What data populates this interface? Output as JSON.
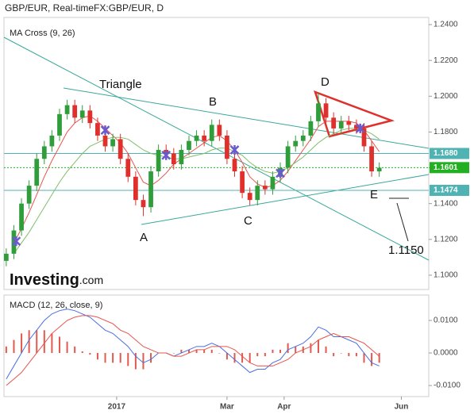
{
  "chart_data": [
    {
      "type": "candlestick",
      "title": "GBP/EUR, Real-timeFX:GBP/EUR, D",
      "subtitle": "MA Cross (9, 26)",
      "logo": {
        "brand": "Investing",
        "suffix": ".com"
      },
      "xlim": [
        -0.3,
        55.5
      ],
      "xticks": [
        {
          "value": 14.5,
          "label": "2017"
        },
        {
          "value": 29,
          "label": "Mar"
        },
        {
          "value": 36.5,
          "label": "Apr"
        },
        {
          "value": 51.9,
          "label": "Jun"
        }
      ],
      "ylim": [
        1.092,
        1.244
      ],
      "yticks": [
        {
          "value": 1.1,
          "label": "1.1000"
        },
        {
          "value": 1.12,
          "label": "1.1200"
        },
        {
          "value": 1.14,
          "label": "1.1400"
        },
        {
          "value": 1.16,
          "label": "1.1600"
        },
        {
          "value": 1.18,
          "label": "1.1800"
        },
        {
          "value": 1.2,
          "label": "1.2000"
        },
        {
          "value": 1.22,
          "label": "1.2200"
        },
        {
          "value": 1.24,
          "label": "1.2400"
        }
      ],
      "up_color": "#2f9e3a",
      "down_color": "#e0302c",
      "open": [
        1.108,
        1.112,
        1.125,
        1.14,
        1.15,
        1.165,
        1.172,
        1.178,
        1.19,
        1.195,
        1.188,
        1.192,
        1.185,
        1.178,
        1.172,
        1.176,
        1.165,
        1.155,
        1.142,
        1.138,
        1.158,
        1.17,
        1.168,
        1.162,
        1.17,
        1.175,
        1.178,
        1.175,
        1.184,
        1.178,
        1.165,
        1.158,
        1.146,
        1.142,
        1.15,
        1.148,
        1.155,
        1.16,
        1.172,
        1.175,
        1.178,
        1.186,
        1.196,
        1.188,
        1.182,
        1.186,
        1.184,
        1.182,
        1.172,
        1.158
      ],
      "high": [
        1.115,
        1.128,
        1.143,
        1.153,
        1.168,
        1.175,
        1.181,
        1.193,
        1.198,
        1.198,
        1.195,
        1.195,
        1.188,
        1.181,
        1.179,
        1.179,
        1.168,
        1.158,
        1.145,
        1.161,
        1.173,
        1.173,
        1.171,
        1.173,
        1.178,
        1.181,
        1.181,
        1.187,
        1.187,
        1.181,
        1.168,
        1.161,
        1.149,
        1.153,
        1.153,
        1.158,
        1.163,
        1.175,
        1.178,
        1.181,
        1.189,
        1.202,
        1.199,
        1.191,
        1.189,
        1.189,
        1.187,
        1.185,
        1.175,
        1.163
      ],
      "low": [
        1.105,
        1.109,
        1.122,
        1.137,
        1.147,
        1.162,
        1.169,
        1.175,
        1.187,
        1.185,
        1.185,
        1.182,
        1.175,
        1.169,
        1.169,
        1.162,
        1.152,
        1.139,
        1.133,
        1.135,
        1.155,
        1.165,
        1.159,
        1.159,
        1.167,
        1.172,
        1.172,
        1.172,
        1.175,
        1.162,
        1.155,
        1.143,
        1.139,
        1.139,
        1.145,
        1.145,
        1.152,
        1.157,
        1.169,
        1.172,
        1.175,
        1.183,
        1.185,
        1.179,
        1.179,
        1.181,
        1.179,
        1.169,
        1.155,
        1.155
      ],
      "close": [
        1.112,
        1.125,
        1.14,
        1.15,
        1.165,
        1.172,
        1.178,
        1.19,
        1.195,
        1.188,
        1.192,
        1.185,
        1.178,
        1.172,
        1.176,
        1.165,
        1.155,
        1.142,
        1.138,
        1.158,
        1.17,
        1.168,
        1.162,
        1.17,
        1.175,
        1.178,
        1.175,
        1.184,
        1.178,
        1.165,
        1.158,
        1.146,
        1.142,
        1.15,
        1.148,
        1.155,
        1.16,
        1.172,
        1.175,
        1.178,
        1.186,
        1.196,
        1.188,
        1.182,
        1.186,
        1.184,
        1.182,
        1.172,
        1.158,
        1.16
      ],
      "series": [
        {
          "color": "#e8544e",
          "values": [
            null,
            1.118,
            1.126,
            1.135,
            1.145,
            1.155,
            1.164,
            1.172,
            1.18,
            1.185,
            1.188,
            1.189,
            1.186,
            1.182,
            1.178,
            1.174,
            1.168,
            1.16,
            1.152,
            1.15,
            1.153,
            1.157,
            1.162,
            1.165,
            1.168,
            1.171,
            1.174,
            1.177,
            1.178,
            1.175,
            1.17,
            1.163,
            1.155,
            1.151,
            1.149,
            1.15,
            1.153,
            1.158,
            1.164,
            1.17,
            1.176,
            1.183,
            1.186,
            1.186,
            1.186,
            1.186,
            1.185,
            1.181,
            1.175,
            1.169
          ]
        },
        {
          "color": "#7fbf6a",
          "values": [
            null,
            1.112,
            1.118,
            1.124,
            1.131,
            1.138,
            1.145,
            1.152,
            1.158,
            1.163,
            1.168,
            1.172,
            1.174,
            1.176,
            1.177,
            1.177,
            1.176,
            1.173,
            1.17,
            1.168,
            1.167,
            1.166,
            1.165,
            1.165,
            1.166,
            1.167,
            1.168,
            1.17,
            1.171,
            1.171,
            1.169,
            1.167,
            1.163,
            1.16,
            1.158,
            1.157,
            1.158,
            1.16,
            1.163,
            1.166,
            1.17,
            1.174,
            1.177,
            1.179,
            1.181,
            1.182,
            1.182,
            1.181,
            1.179,
            1.176
          ]
        }
      ],
      "cross_markers": {
        "color": "#6a5acd",
        "x": [
          1.3,
          13,
          21,
          30,
          36,
          46.5
        ],
        "values": [
          1.119,
          1.181,
          1.167,
          1.17,
          1.157,
          1.182
        ]
      },
      "levels": [
        {
          "value": 1.168,
          "label": "1.1680",
          "color": "#4fb3b3"
        },
        {
          "value": 1.1601,
          "label": "1.1601",
          "color": "#22b022"
        },
        {
          "value": 1.1474,
          "label": "1.1474",
          "color": "#4fb3b3"
        }
      ],
      "annotations": [
        "Triangle",
        "B",
        "D",
        "A",
        "C",
        "E",
        "1.1150"
      ]
    },
    {
      "type": "macd",
      "title": "MACD (12, 26, close, 9)",
      "ylim": [
        -0.0134,
        0.0178
      ],
      "yticks": [
        {
          "value": 0.01,
          "label": "0.0100"
        },
        {
          "value": 0,
          "label": "0.0000"
        },
        {
          "value": -0.01,
          "label": "-0.0100"
        }
      ],
      "histogram": {
        "color": "#e05a50",
        "values": [
          0.002,
          0.004,
          0.006,
          0.007,
          0.007,
          0.007,
          0.006,
          0.005,
          0.0035,
          0.002,
          0.0005,
          -0.0005,
          -0.002,
          -0.003,
          -0.003,
          -0.003,
          -0.004,
          -0.005,
          -0.005,
          -0.003,
          0,
          0,
          0,
          0.001,
          0.001,
          0.001,
          0.001,
          0.001,
          0,
          -0.002,
          -0.003,
          -0.003,
          -0.003,
          -0.001,
          -0.001,
          0.001,
          0.001,
          0.003,
          0.002,
          0.002,
          0.003,
          0.004,
          0.002,
          -0.001,
          0,
          -0.001,
          -0.001,
          -0.003,
          -0.004,
          -0.003
        ]
      },
      "series": [
        {
          "color": "#4a6fe0",
          "values": [
            -0.008,
            -0.004,
            0.0,
            0.004,
            0.007,
            0.01,
            0.012,
            0.013,
            0.0135,
            0.013,
            0.012,
            0.011,
            0.009,
            0.007,
            0.006,
            0.004,
            0.002,
            -0.001,
            -0.003,
            -0.002,
            0.0,
            0.0,
            -0.001,
            0.0,
            0.001,
            0.002,
            0.002,
            0.003,
            0.002,
            0.0,
            -0.002,
            -0.004,
            -0.006,
            -0.005,
            -0.005,
            -0.003,
            -0.002,
            0.001,
            0.002,
            0.003,
            0.005,
            0.008,
            0.007,
            0.005,
            0.005,
            0.004,
            0.003,
            0.0,
            -0.003,
            -0.004
          ]
        },
        {
          "color": "#e8544e",
          "values": [
            -0.01,
            -0.008,
            -0.006,
            -0.003,
            0.0,
            0.003,
            0.006,
            0.008,
            0.01,
            0.011,
            0.0115,
            0.0115,
            0.011,
            0.01,
            0.009,
            0.007,
            0.006,
            0.004,
            0.002,
            0.001,
            0.0,
            0.0,
            -0.001,
            -0.001,
            0.0,
            0.001,
            0.001,
            0.002,
            0.002,
            0.002,
            0.001,
            -0.001,
            -0.003,
            -0.004,
            -0.004,
            -0.004,
            -0.003,
            -0.002,
            0.0,
            0.001,
            0.002,
            0.004,
            0.005,
            0.006,
            0.005,
            0.005,
            0.004,
            0.003,
            0.001,
            -0.001
          ]
        }
      ]
    }
  ]
}
